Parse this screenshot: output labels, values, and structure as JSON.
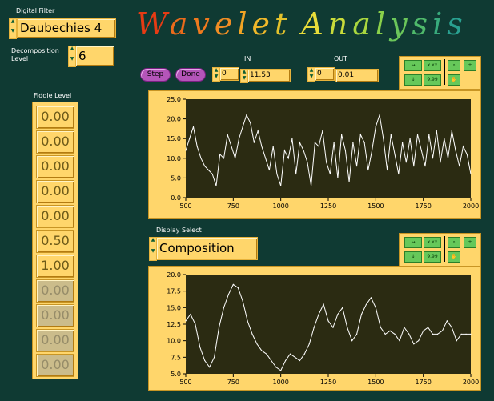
{
  "title": {
    "letters": [
      {
        "ch": "W",
        "color": "#e63b14"
      },
      {
        "ch": "a",
        "color": "#ea6b1b"
      },
      {
        "ch": "v",
        "color": "#ef7a1e"
      },
      {
        "ch": "e",
        "color": "#f08d24"
      },
      {
        "ch": "l",
        "color": "#f2a524"
      },
      {
        "ch": "e",
        "color": "#f0b82a"
      },
      {
        "ch": "t",
        "color": "#e3c22c"
      },
      {
        "ch": " ",
        "color": "#ffffff"
      },
      {
        "ch": "A",
        "color": "#e8dc3a"
      },
      {
        "ch": "n",
        "color": "#c8db3a"
      },
      {
        "ch": "a",
        "color": "#a9d63f"
      },
      {
        "ch": "l",
        "color": "#8ad04a"
      },
      {
        "ch": "y",
        "color": "#6bc65a"
      },
      {
        "ch": "s",
        "color": "#4fb96b"
      },
      {
        "ch": "i",
        "color": "#38aa7c"
      },
      {
        "ch": "s",
        "color": "#29a090"
      }
    ]
  },
  "digital_filter": {
    "label": "Digital Filter",
    "value": "Daubechies 4"
  },
  "decomposition": {
    "label_line1": "Decomposition",
    "label_line2": "Level",
    "value": "6"
  },
  "controls": {
    "step_label": "Step",
    "done_label": "Done",
    "in_label": "IN",
    "in_index": "0",
    "in_value": "11.53",
    "out_label": "OUT",
    "out_index": "0",
    "out_value": "0.01"
  },
  "fiddle": {
    "label": "Fiddle Level",
    "values": [
      "0.00",
      "0.00",
      "0.00",
      "0.00",
      "0.00",
      "0.50",
      "1.00",
      "0.00",
      "0.00",
      "0.00",
      "0.00"
    ]
  },
  "display_select": {
    "label": "Display Select",
    "value": "Composition"
  },
  "tool_icons": [
    "x-scale-icon",
    "x-format-icon",
    "zoom-icon",
    "crosshair-icon",
    "y-scale-icon",
    "y-format-icon",
    "pan-icon"
  ],
  "chart_data": [
    {
      "type": "line",
      "title": "",
      "xlabel": "",
      "ylabel": "",
      "xlim": [
        500,
        2000
      ],
      "ylim": [
        0,
        25
      ],
      "xticks": [
        "500",
        "750",
        "1000",
        "1250",
        "1500",
        "1750",
        "2000"
      ],
      "yticks": [
        "25.0",
        "20.0",
        "15.0",
        "10.0",
        "5.0",
        "0.0"
      ],
      "x": [
        500,
        520,
        540,
        560,
        580,
        600,
        620,
        640,
        660,
        680,
        700,
        720,
        740,
        760,
        780,
        800,
        820,
        840,
        860,
        880,
        900,
        920,
        940,
        960,
        980,
        1000,
        1020,
        1040,
        1060,
        1080,
        1100,
        1120,
        1140,
        1160,
        1180,
        1200,
        1220,
        1240,
        1260,
        1280,
        1300,
        1320,
        1340,
        1360,
        1380,
        1400,
        1420,
        1440,
        1460,
        1480,
        1500,
        1520,
        1540,
        1560,
        1580,
        1600,
        1620,
        1640,
        1660,
        1680,
        1700,
        1720,
        1740,
        1760,
        1780,
        1800,
        1820,
        1840,
        1860,
        1880,
        1900,
        1920,
        1940,
        1960,
        1980,
        2000
      ],
      "values": [
        12,
        15,
        18,
        13,
        10,
        8,
        7,
        6,
        3,
        11,
        10,
        16,
        13,
        10,
        15,
        18,
        21,
        19,
        14,
        17,
        13,
        10,
        7,
        13,
        6,
        3,
        12,
        10,
        15,
        6,
        14,
        12,
        9,
        3,
        14,
        13,
        17,
        9,
        6,
        14,
        5,
        16,
        12,
        4,
        14,
        8,
        16,
        14,
        7,
        12,
        18,
        21,
        15,
        7,
        16,
        11,
        6,
        14,
        9,
        15,
        8,
        16,
        12,
        8,
        16,
        10,
        17,
        9,
        15,
        10,
        17,
        12,
        8,
        13,
        11,
        6
      ],
      "color": "#ffffff"
    },
    {
      "type": "line",
      "title": "",
      "xlabel": "",
      "ylabel": "",
      "xlim": [
        500,
        2000
      ],
      "ylim": [
        5,
        20
      ],
      "xticks": [
        "500",
        "750",
        "1000",
        "1250",
        "1500",
        "1750",
        "2000"
      ],
      "yticks": [
        "20.0",
        "17.5",
        "15.0",
        "12.5",
        "10.0",
        "7.5",
        "5.0"
      ],
      "x": [
        500,
        525,
        550,
        575,
        600,
        625,
        650,
        675,
        700,
        725,
        750,
        775,
        800,
        825,
        850,
        875,
        900,
        925,
        950,
        975,
        1000,
        1025,
        1050,
        1075,
        1100,
        1125,
        1150,
        1175,
        1200,
        1225,
        1250,
        1275,
        1300,
        1325,
        1350,
        1375,
        1400,
        1425,
        1450,
        1475,
        1500,
        1525,
        1550,
        1575,
        1600,
        1625,
        1650,
        1675,
        1700,
        1725,
        1750,
        1775,
        1800,
        1825,
        1850,
        1875,
        1900,
        1925,
        1950,
        1975,
        2000
      ],
      "values": [
        13,
        14,
        12.5,
        9,
        7,
        6,
        7.5,
        12,
        15,
        17,
        18.5,
        18,
        16,
        13,
        11,
        9.5,
        8.5,
        8,
        7,
        6,
        5.5,
        7,
        8,
        7.5,
        7,
        8,
        9.5,
        12,
        14,
        15.5,
        13,
        12,
        14,
        15,
        12,
        10,
        11,
        14,
        15.5,
        16.5,
        15,
        12,
        11,
        11.5,
        11,
        10,
        12,
        11,
        9.5,
        10,
        11.5,
        12,
        11,
        11,
        11.5,
        13,
        12,
        10,
        11,
        11,
        11
      ],
      "color": "#ffffff"
    }
  ]
}
